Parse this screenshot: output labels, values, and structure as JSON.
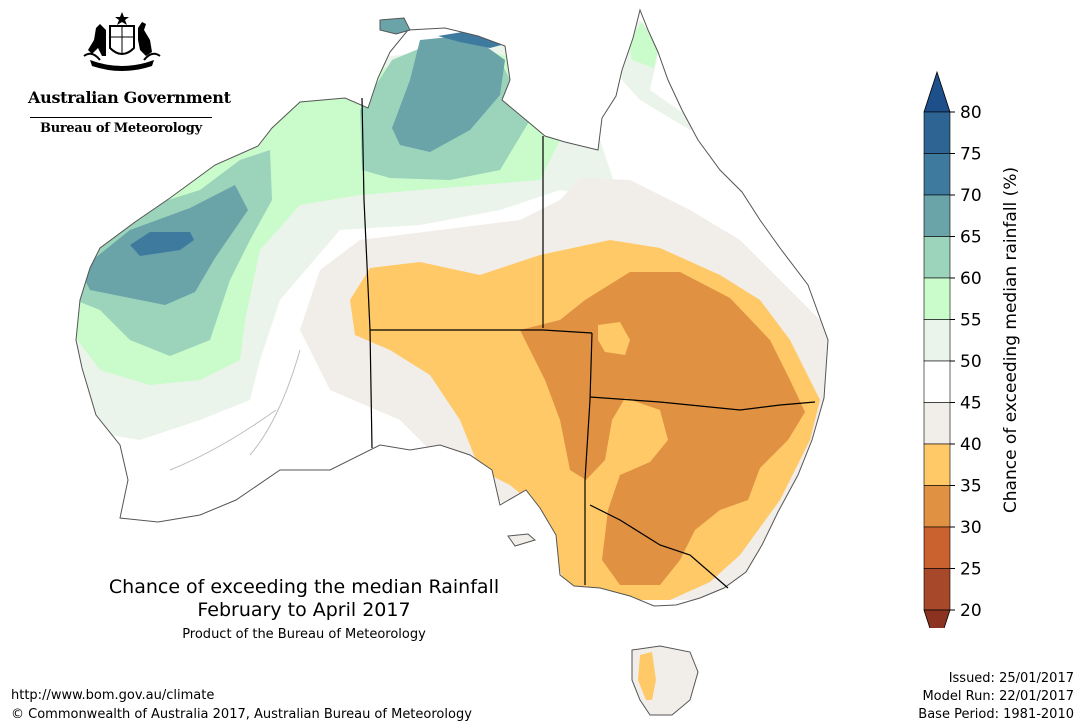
{
  "header": {
    "gov_name": "Australian Government",
    "agency": "Bureau of Meteorology",
    "logo_icon": "coat-of-arms-icon"
  },
  "map": {
    "title": "Chance of exceeding the median Rainfall",
    "period": "February to April 2017",
    "product": "Product of the Bureau of Meteorology",
    "region": "Australia"
  },
  "legend": {
    "title": "Chance of exceeding median rainfall (%)",
    "ticks": [
      "80",
      "75",
      "70",
      "65",
      "60",
      "55",
      "50",
      "45",
      "40",
      "35",
      "30",
      "25",
      "20"
    ],
    "bins": [
      {
        "range": "75-80",
        "color": "#2d6494"
      },
      {
        "range": "70-75",
        "color": "#3e7a9e"
      },
      {
        "range": "65-70",
        "color": "#6aa3a8"
      },
      {
        "range": "60-65",
        "color": "#9bd3bb"
      },
      {
        "range": "55-60",
        "color": "#c9fbcb"
      },
      {
        "range": "50-55",
        "color": "#ebf4ea"
      },
      {
        "range": "45-50",
        "color": "#ffffff"
      },
      {
        "range": "40-45",
        "color": "#f1ede9"
      },
      {
        "range": "35-40",
        "color": "#fec966"
      },
      {
        "range": "30-35",
        "color": "#e09142"
      },
      {
        "range": "25-30",
        "color": "#c9622f"
      },
      {
        "range": "20-25",
        "color": "#a8482a"
      }
    ],
    "over_color": "#1d4f8a",
    "under_color": "#8b3220"
  },
  "footer": {
    "url": "http://www.bom.gov.au/climate",
    "copyright": "© Commonwealth of Australia 2017, Australian Bureau of Meteorology",
    "issued": "Issued: 25/01/2017",
    "model_run": "Model Run: 22/01/2017",
    "base_period": "Base Period: 1981-2010"
  }
}
